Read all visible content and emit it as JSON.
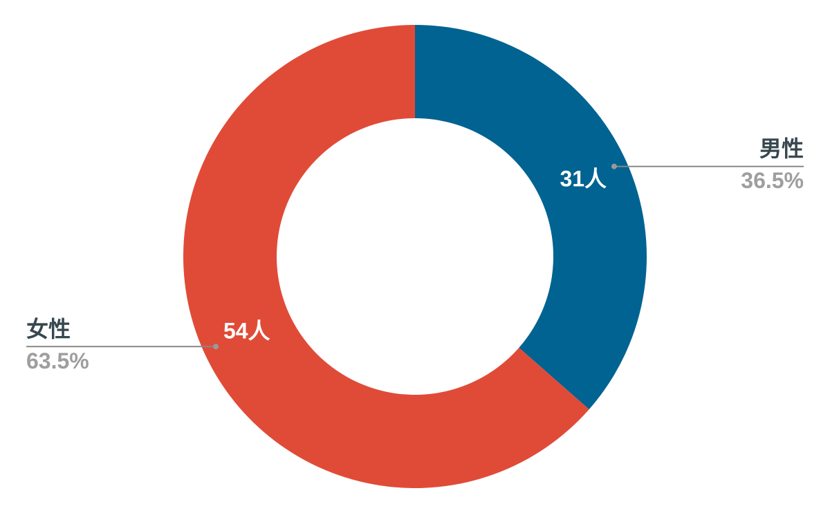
{
  "chart_data": {
    "type": "donut",
    "categories": [
      "男性",
      "女性"
    ],
    "values": [
      31,
      54
    ],
    "value_labels": [
      "31人",
      "54人"
    ],
    "percent_labels": [
      "36.5%",
      "63.5%"
    ],
    "colors": [
      "#006391",
      "#e04b38"
    ]
  }
}
